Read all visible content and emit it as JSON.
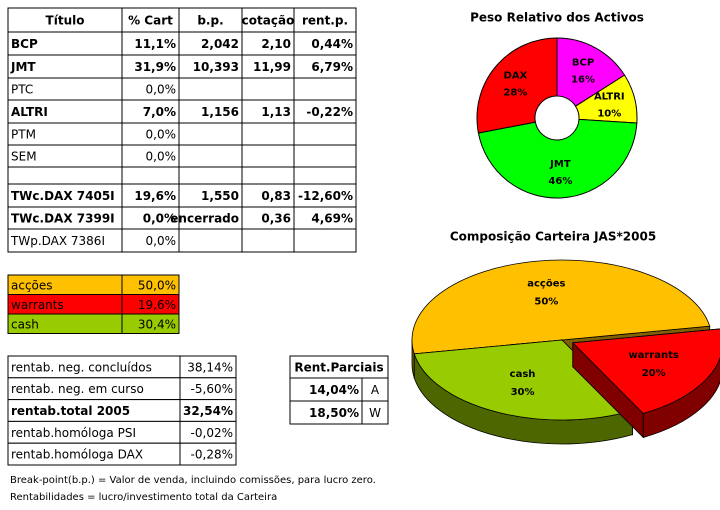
{
  "holdings": {
    "header": [
      "Título",
      "% Cart",
      "b.p.",
      "cotação",
      "rent.p."
    ],
    "rows": [
      [
        "BCP",
        "11,1%",
        "2,042",
        "2,10",
        "0,44%"
      ],
      [
        "JMT",
        "31,9%",
        "10,393",
        "11,99",
        "6,79%"
      ],
      [
        "PTC",
        "0,0%",
        null,
        null,
        null
      ],
      [
        "ALTRI",
        "7,0%",
        "1,156",
        "1,13",
        "-0,22%"
      ],
      [
        "PTM",
        "0,0%",
        null,
        null,
        null
      ],
      [
        "SEM",
        "0,0%",
        null,
        null,
        null
      ],
      [
        null,
        null,
        null,
        null,
        null
      ],
      [
        "TWc.DAX 7405I",
        "19,6%",
        "1,550",
        "0,83",
        "-12,60%"
      ],
      [
        "TWc.DAX 7399I",
        "0,0%",
        "encerrado",
        "0,36",
        "4,69%"
      ],
      [
        "TWp.DAX 7386I",
        "0,0%",
        null,
        null,
        null
      ]
    ]
  },
  "allocation": {
    "rows": [
      [
        "acções",
        "50,0%"
      ],
      [
        "warrants",
        "19,6%"
      ],
      [
        "cash",
        "30,4%"
      ]
    ]
  },
  "returns": {
    "rows": [
      [
        "rentab. neg. concluídos",
        "38,14%"
      ],
      [
        "rentab. neg. em curso",
        "-5,60%"
      ],
      [
        "rentab.total 2005",
        "32,54%"
      ],
      [
        "rentab.homóloga PSI",
        "-0,02%"
      ],
      [
        "rentab.homóloga DAX",
        "-0,28%"
      ]
    ]
  },
  "partial_returns": {
    "title": "Rent.Parciais",
    "rows": [
      [
        "14,04%",
        "A"
      ],
      [
        "18,50%",
        "W"
      ]
    ]
  },
  "notes": [
    "Break-point(b.p.) = Valor de venda, incluindo comissões, para lucro zero.",
    "Rentabilidades = lucro/investimento total da Carteira"
  ],
  "chart_data": [
    {
      "type": "donut",
      "title": "Peso Relativo dos Activos",
      "categories": [
        "BCP",
        "ALTRI",
        "JMT",
        "DAX"
      ],
      "values": [
        16,
        10,
        46,
        28
      ],
      "value_labels": [
        "16%",
        "10%",
        "46%",
        "28%"
      ],
      "colors": [
        "#ff00ff",
        "#ffff00",
        "#00ff00",
        "#ff0000"
      ]
    },
    {
      "type": "pie3d",
      "title": "Composição Carteira JAS*2005",
      "categories": [
        "acções",
        "warrants",
        "cash"
      ],
      "values": [
        50,
        20,
        30
      ],
      "value_labels": [
        "50%",
        "20%",
        "30%"
      ],
      "colors": [
        "#ffc000",
        "#ff0000",
        "#99cc00"
      ]
    }
  ]
}
